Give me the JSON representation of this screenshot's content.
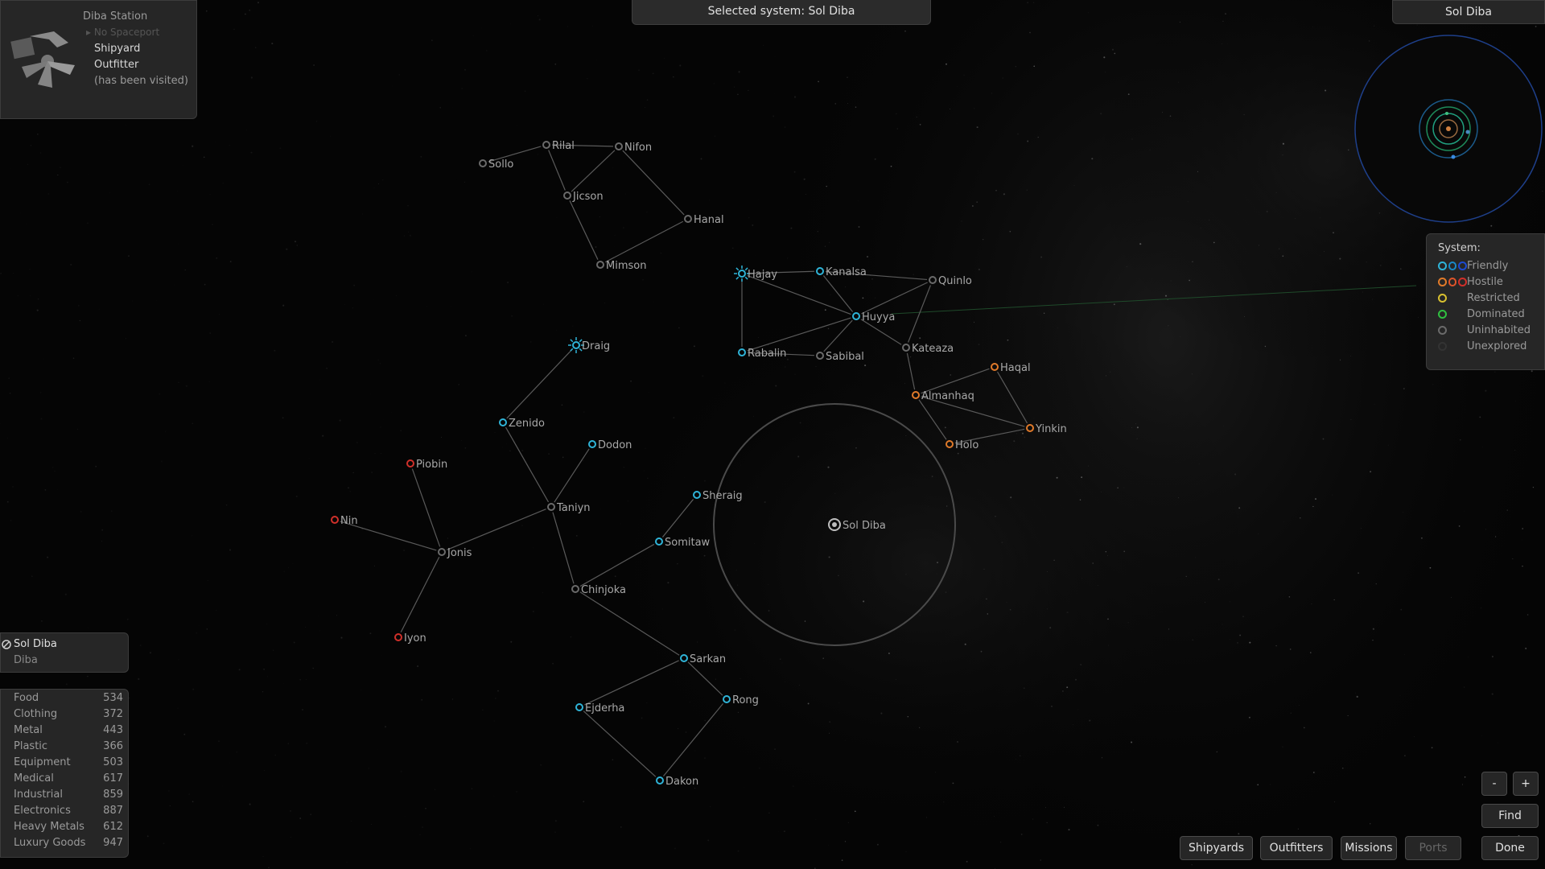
{
  "header": {
    "selected_system": "Selected system: Sol Diba"
  },
  "station": {
    "name": "Diba Station",
    "no_spaceport": "No Spaceport",
    "services": [
      "Shipyard",
      "Outfitter"
    ],
    "visited": "(has been visited)"
  },
  "minimap": {
    "title": "Sol Diba"
  },
  "legend": {
    "title": "System:",
    "items": [
      {
        "label": "Friendly",
        "colors": [
          "#2fb4d8",
          "#1a8ac8",
          "#1d4bd0"
        ]
      },
      {
        "label": "Hostile",
        "colors": [
          "#e07a2a",
          "#e0552a",
          "#d0302a"
        ]
      },
      {
        "label": "Restricted",
        "colors": [
          "#d8c030"
        ]
      },
      {
        "label": "Dominated",
        "colors": [
          "#30c040"
        ]
      },
      {
        "label": "Uninhabited",
        "colors": [
          "#6a6a6a"
        ]
      },
      {
        "label": "Unexplored",
        "colors": [
          "#333333"
        ]
      }
    ]
  },
  "selected": {
    "name": "Sol Diba",
    "government": "Diba"
  },
  "commodities": [
    {
      "name": "Food",
      "price": "534"
    },
    {
      "name": "Clothing",
      "price": "372"
    },
    {
      "name": "Metal",
      "price": "443"
    },
    {
      "name": "Plastic",
      "price": "366"
    },
    {
      "name": "Equipment",
      "price": "503"
    },
    {
      "name": "Medical",
      "price": "617"
    },
    {
      "name": "Industrial",
      "price": "859"
    },
    {
      "name": "Electronics",
      "price": "887"
    },
    {
      "name": "Heavy Metals",
      "price": "612"
    },
    {
      "name": "Luxury Goods",
      "price": "947"
    }
  ],
  "buttons": {
    "zoom_out": "-",
    "zoom_in": "+",
    "find": "Find",
    "shipyards": "Shipyards",
    "outfitters": "Outfitters",
    "missions": "Missions",
    "ports": "Ports",
    "done": "Done"
  },
  "colors": {
    "friendly": "#2fb4d8",
    "hostile_orange": "#e07a2a",
    "hostile_red": "#d0302a",
    "uninhabited": "#6a6a6a",
    "link": "#5a5a5a"
  },
  "systems": [
    {
      "name": "Sollo",
      "status": "uninhabited"
    },
    {
      "name": "Rilal",
      "status": "uninhabited"
    },
    {
      "name": "Nifon",
      "status": "uninhabited"
    },
    {
      "name": "Jicson",
      "status": "uninhabited"
    },
    {
      "name": "Hanal",
      "status": "uninhabited"
    },
    {
      "name": "Mimson",
      "status": "uninhabited"
    },
    {
      "name": "Hajay",
      "status": "friendly"
    },
    {
      "name": "Kanalsa",
      "status": "friendly"
    },
    {
      "name": "Quinlo",
      "status": "uninhabited"
    },
    {
      "name": "Huyya",
      "status": "friendly"
    },
    {
      "name": "Rabalin",
      "status": "friendly"
    },
    {
      "name": "Sabibal",
      "status": "uninhabited"
    },
    {
      "name": "Kateaza",
      "status": "uninhabited"
    },
    {
      "name": "Haqal",
      "status": "hostile_orange"
    },
    {
      "name": "Almanhaq",
      "status": "hostile_orange"
    },
    {
      "name": "Yinkin",
      "status": "hostile_orange"
    },
    {
      "name": "Holo",
      "status": "hostile_orange"
    },
    {
      "name": "Draig",
      "status": "friendly"
    },
    {
      "name": "Zenido",
      "status": "friendly"
    },
    {
      "name": "Dodon",
      "status": "friendly"
    },
    {
      "name": "Piobin",
      "status": "hostile_red"
    },
    {
      "name": "Nin",
      "status": "hostile_red"
    },
    {
      "name": "Taniyn",
      "status": "uninhabited"
    },
    {
      "name": "Jonis",
      "status": "uninhabited"
    },
    {
      "name": "Sheraig",
      "status": "friendly"
    },
    {
      "name": "Somitaw",
      "status": "friendly"
    },
    {
      "name": "Chinjoka",
      "status": "uninhabited"
    },
    {
      "name": "Iyon",
      "status": "hostile_red"
    },
    {
      "name": "Sarkan",
      "status": "friendly"
    },
    {
      "name": "Rong",
      "status": "friendly"
    },
    {
      "name": "Ejderha",
      "status": "friendly"
    },
    {
      "name": "Dakon",
      "status": "friendly"
    },
    {
      "name": "Sol Diba",
      "status": "selected"
    }
  ]
}
